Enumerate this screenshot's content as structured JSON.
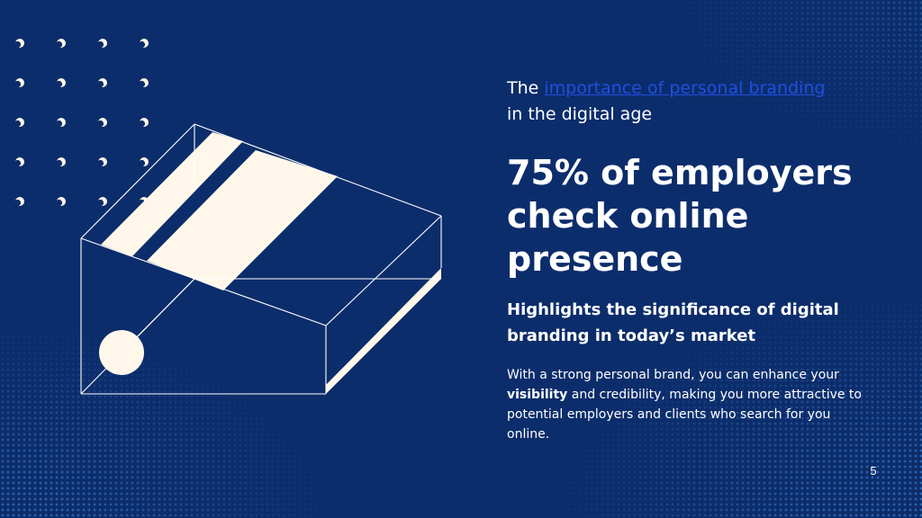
{
  "slide": {
    "intro_prefix": "The ",
    "intro_link": "importance of personal branding",
    "intro_suffix": "in the digital age",
    "headline_line1": "75% of employers",
    "headline_line2": "check online",
    "headline_line3": "presence",
    "subhead_line1": "Highlights the significance of digital",
    "subhead_line2": "branding in today’s market",
    "body_part1": "With a strong personal brand, you can enhance your ",
    "body_bold": "visibility",
    "body_part2": " and credibility, making you more attractive to potential employers and clients who search for you online.",
    "page_number": "5"
  },
  "colors": {
    "background": "#0c2d6b",
    "cream": "#fff7e9",
    "link": "#1f4fe0",
    "text": "#ffffff"
  },
  "icons": {
    "decorative_dots": "moon-dot-icon",
    "illustration": "open-box-illustration"
  }
}
